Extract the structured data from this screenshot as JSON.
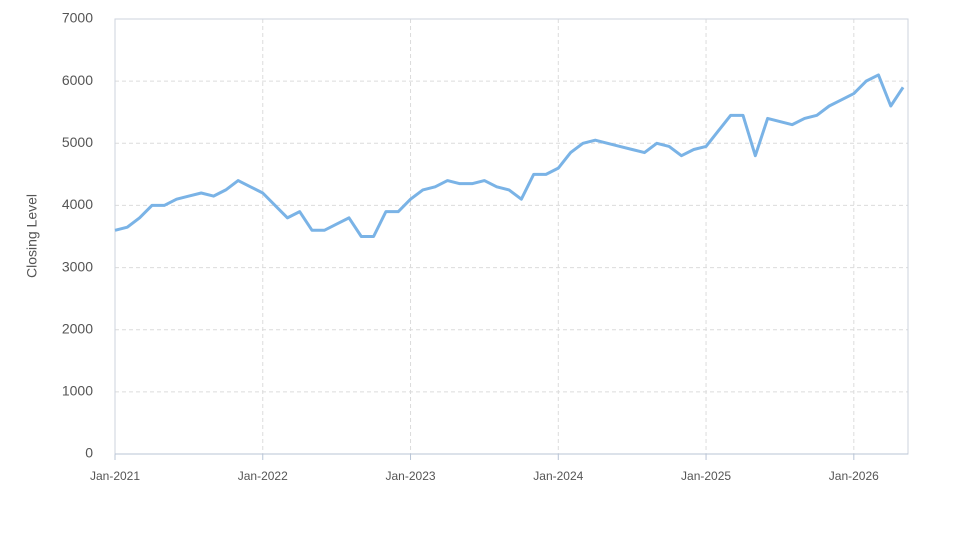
{
  "chart_data": {
    "type": "line",
    "y_label": "Closing Level",
    "x": [
      "Jan-2021",
      "Feb-2021",
      "Mar-2021",
      "Apr-2021",
      "May-2021",
      "Jun-2021",
      "Jul-2021",
      "Aug-2021",
      "Sep-2021",
      "Oct-2021",
      "Nov-2021",
      "Dec-2021",
      "Jan-2022",
      "Feb-2022",
      "Mar-2022",
      "Apr-2022",
      "May-2022",
      "Jun-2022",
      "Jul-2022",
      "Aug-2022",
      "Sep-2022",
      "Oct-2022",
      "Nov-2022",
      "Dec-2022",
      "Jan-2023",
      "Feb-2023",
      "Mar-2023",
      "Apr-2023",
      "May-2023",
      "Jun-2023",
      "Jul-2023",
      "Aug-2023",
      "Sep-2023",
      "Oct-2023",
      "Nov-2023",
      "Dec-2023",
      "Jan-2024",
      "Feb-2024",
      "Mar-2024",
      "Apr-2024",
      "May-2024",
      "Jun-2024",
      "Jul-2024",
      "Aug-2024",
      "Sep-2024",
      "Oct-2024",
      "Nov-2024",
      "Dec-2024",
      "Jan-2025",
      "Feb-2025",
      "Mar-2025",
      "Apr-2025",
      "May-2025",
      "Jun-2025",
      "Jul-2025",
      "Aug-2025",
      "Sep-2025",
      "Oct-2025",
      "Nov-2025",
      "Dec-2025",
      "Jan-2026",
      "Feb-2026",
      "Mar-2026",
      "Apr-2026",
      "May-2026"
    ],
    "series": [
      {
        "name": "Closing Level",
        "color": "#7ab3e6",
        "values": [
          3600,
          3650,
          3800,
          4000,
          4000,
          4100,
          4150,
          4200,
          4150,
          4250,
          4400,
          4300,
          4200,
          4000,
          3800,
          3900,
          3600,
          3600,
          3700,
          3800,
          3500,
          3500,
          3900,
          3900,
          4100,
          4250,
          4300,
          4400,
          4350,
          4350,
          4400,
          4300,
          4250,
          4100,
          4500,
          4500,
          4600,
          4850,
          5000,
          5050,
          5000,
          4950,
          4900,
          4850,
          5000,
          4950,
          4800,
          4900,
          4950,
          5200,
          5450,
          5450,
          4800,
          5400,
          5350,
          5300,
          5400,
          5450,
          5600,
          5700,
          5800,
          6000,
          6100,
          5600,
          5900
        ]
      }
    ],
    "xlim": [
      "Jan-2021",
      "May-2026"
    ],
    "xticks": [
      "Jan-2021",
      "Jan-2022",
      "Jan-2023",
      "Jan-2024",
      "Jan-2025",
      "Jan-2026"
    ],
    "ylim": [
      0,
      7000
    ],
    "yticks": [
      0,
      1000,
      2000,
      3000,
      4000,
      5000,
      6000,
      7000
    ],
    "grid": true
  }
}
